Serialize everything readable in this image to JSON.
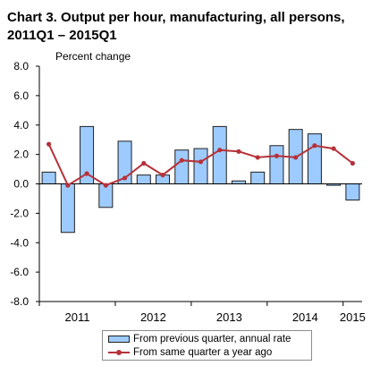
{
  "title": {
    "line1": "Chart  3. Output per hour, manufacturing, all persons,",
    "line2": "2011Q1 – 2015Q1"
  },
  "colors": {
    "bar_fill": "#9ecbff",
    "bar_stroke": "#1f1f1f",
    "line": "#b5323a",
    "axis": "#000000"
  },
  "chart_data": {
    "type": "bar",
    "ylabel": "Percent change",
    "ylim": [
      -8.0,
      8.0
    ],
    "yticks": [
      "8.0",
      "6.0",
      "4.0",
      "2.0",
      "0.0",
      "-2.0",
      "-4.0",
      "-6.0",
      "-8.0"
    ],
    "grid": false,
    "legend_position": "bottom",
    "categories": [
      "2011Q1",
      "2011Q2",
      "2011Q3",
      "2011Q4",
      "2012Q1",
      "2012Q2",
      "2012Q3",
      "2012Q4",
      "2013Q1",
      "2013Q2",
      "2013Q3",
      "2013Q4",
      "2014Q1",
      "2014Q2",
      "2014Q3",
      "2014Q4",
      "2015Q1"
    ],
    "x_year_labels": [
      "2011",
      "2012",
      "2013",
      "2014",
      "2015"
    ],
    "series": [
      {
        "name": "From previous quarter, annual rate",
        "kind": "bar",
        "values": [
          0.8,
          -3.3,
          3.9,
          -1.6,
          2.9,
          0.6,
          0.6,
          2.3,
          2.4,
          3.9,
          0.2,
          0.8,
          2.6,
          3.7,
          3.4,
          -0.1,
          -1.1
        ]
      },
      {
        "name": "From same quarter a year ago",
        "kind": "line",
        "values": [
          2.7,
          -0.1,
          0.7,
          -0.1,
          0.4,
          1.4,
          0.6,
          1.6,
          1.5,
          2.3,
          2.2,
          1.8,
          1.9,
          1.8,
          2.6,
          2.4,
          1.4
        ]
      }
    ]
  }
}
